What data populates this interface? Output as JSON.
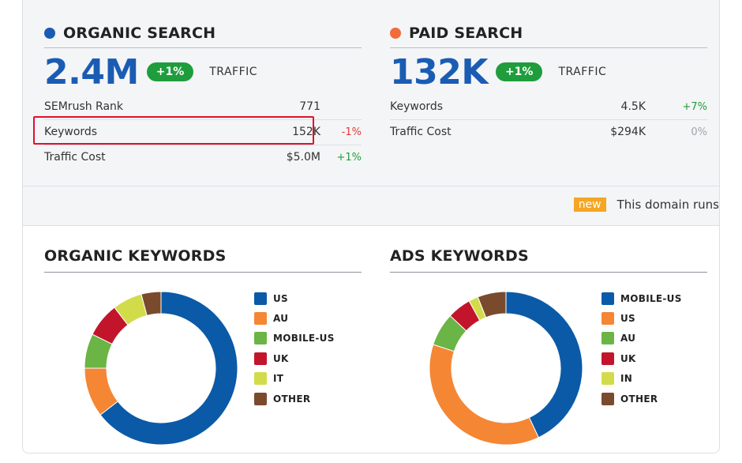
{
  "organic": {
    "title": "ORGANIC SEARCH",
    "dot_color": "#1a5cb3",
    "big_value": "2.4M",
    "change_pill": "+1%",
    "traffic_label": "TRAFFIC",
    "rows": [
      {
        "label": "SEMrush Rank",
        "value": "771",
        "change": ""
      },
      {
        "label": "Keywords",
        "value": "152K",
        "change": "-1%"
      },
      {
        "label": "Traffic Cost",
        "value": "$5.0M",
        "change": "+1%"
      }
    ]
  },
  "paid": {
    "title": "PAID SEARCH",
    "dot_color": "#f26b3a",
    "big_value": "132K",
    "change_pill": "+1%",
    "traffic_label": "TRAFFIC",
    "rows": [
      {
        "label": "Keywords",
        "value": "4.5K",
        "change": "+7%"
      },
      {
        "label": "Traffic Cost",
        "value": "$294K",
        "change": "0%"
      }
    ]
  },
  "notice": {
    "badge": "new",
    "text": "This domain runs"
  },
  "organic_keywords": {
    "title": "ORGANIC KEYWORDS",
    "legend": [
      "US",
      "AU",
      "MOBILE-US",
      "UK",
      "IT",
      "OTHER"
    ]
  },
  "ads_keywords": {
    "title": "ADS KEYWORDS",
    "legend": [
      "MOBILE-US",
      "US",
      "AU",
      "UK",
      "IN",
      "OTHER"
    ]
  },
  "colors": {
    "blue": "#0b5aa8",
    "orange": "#f58634",
    "green": "#6ab545",
    "red": "#c2152b",
    "yellow": "#d2dc4a",
    "brown": "#7a4a2c",
    "highlight": "#e0102b"
  },
  "chart_data": [
    {
      "type": "pie",
      "title": "ORGANIC KEYWORDS",
      "categories": [
        "US",
        "AU",
        "MOBILE-US",
        "UK",
        "IT",
        "OTHER"
      ],
      "values": [
        62,
        10,
        7,
        7,
        6,
        4
      ],
      "colors": [
        "#0b5aa8",
        "#f58634",
        "#6ab545",
        "#c2152b",
        "#d2dc4a",
        "#7a4a2c"
      ],
      "legend": "right"
    },
    {
      "type": "pie",
      "title": "ADS KEYWORDS",
      "categories": [
        "MOBILE-US",
        "US",
        "AU",
        "UK",
        "IN",
        "OTHER"
      ],
      "values": [
        43,
        37,
        7,
        5,
        2,
        6
      ],
      "colors": [
        "#0b5aa8",
        "#f58634",
        "#6ab545",
        "#c2152b",
        "#d2dc4a",
        "#7a4a2c"
      ],
      "legend": "right"
    }
  ]
}
